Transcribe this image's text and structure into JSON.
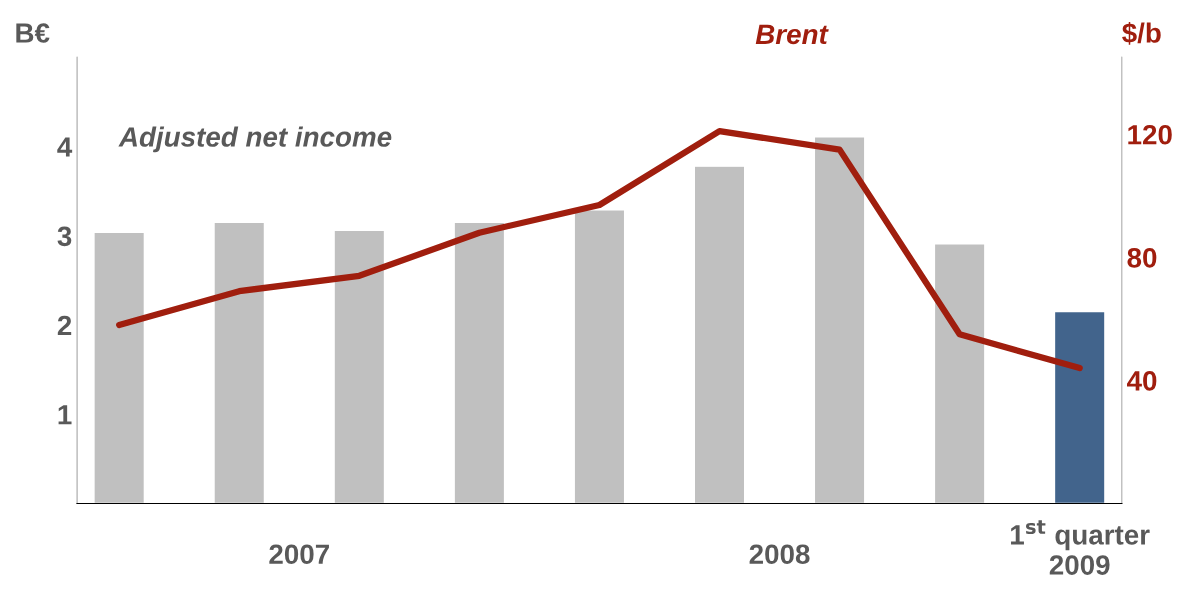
{
  "chart_data": {
    "type": "bar",
    "ylabel": "B€",
    "y2label": "$/b",
    "categories": [
      null,
      null,
      null,
      null,
      null,
      null,
      null,
      null,
      "1$^{st}$ quarter\n2009"
    ],
    "annotations": [
      "2007",
      "2008"
    ],
    "series": [
      {
        "name": "Adjusted net income",
        "colors": [
          "#c0c0c0",
          "#c0c0c0",
          "#c0c0c0",
          "#c0c0c0",
          "#c0c0c0",
          "#c0c0c0",
          "#c0c0c0",
          "#c0c0c0",
          "#42648c"
        ],
        "values": [
          3.04,
          3.15,
          3.06,
          3.15,
          3.29,
          3.78,
          4.11,
          2.91,
          2.15
        ]
      },
      {
        "name": "Brent",
        "type": "line",
        "axis": "y2",
        "color": "#a01e0e",
        "values": [
          58,
          69,
          74,
          88,
          97,
          121,
          115,
          55,
          44
        ]
      }
    ],
    "ylim": [
      0,
      5
    ],
    "yticks": [
      1,
      2,
      3,
      4
    ],
    "y2lim": [
      0,
      145
    ],
    "y2ticks": [
      40,
      80,
      120
    ],
    "grid": false,
    "legend": false
  }
}
